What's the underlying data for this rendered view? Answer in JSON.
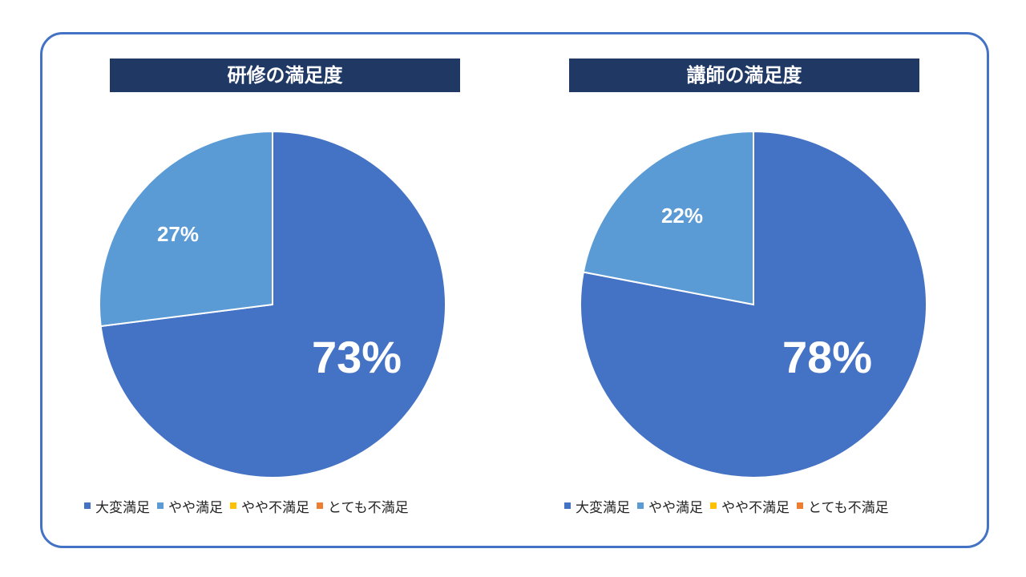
{
  "chart_data": [
    {
      "type": "pie",
      "title": "研修の満足度",
      "categories": [
        "大変満足",
        "やや満足",
        "やや不満足",
        "とても不満足"
      ],
      "values": [
        73,
        27,
        0,
        0
      ],
      "labels": [
        "73%",
        "27%"
      ],
      "colors": [
        "#4472c4",
        "#5b9bd5",
        "#ffc000",
        "#ed7d31"
      ],
      "legend_position": "bottom"
    },
    {
      "type": "pie",
      "title": "講師の満足度",
      "categories": [
        "大変満足",
        "やや満足",
        "やや不満足",
        "とても不満足"
      ],
      "values": [
        78,
        22,
        0,
        0
      ],
      "labels": [
        "78%",
        "22%"
      ],
      "colors": [
        "#4472c4",
        "#5b9bd5",
        "#ffc000",
        "#ed7d31"
      ],
      "legend_position": "bottom"
    }
  ],
  "colors": {
    "frame_border": "#4472c4",
    "banner_bg": "#1f3864",
    "banner_text": "#ffffff"
  }
}
